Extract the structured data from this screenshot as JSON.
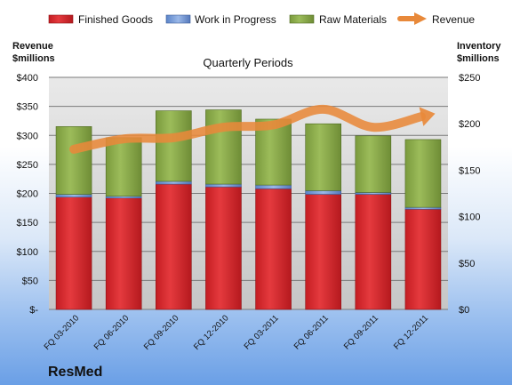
{
  "chart_data": {
    "type": "bar",
    "subtitle": "Quarterly Periods",
    "company": "ResMed",
    "left_axis": {
      "title_line1": "Revenue",
      "title_line2": "$millions",
      "range": [
        0,
        400
      ],
      "ticks": [
        0,
        50,
        100,
        150,
        200,
        250,
        300,
        350,
        400
      ],
      "tick_labels": [
        "$-",
        "$50",
        "$100",
        "$150",
        "$200",
        "$250",
        "$300",
        "$350",
        "$400"
      ]
    },
    "right_axis": {
      "title_line1": "Inventory",
      "title_line2": "$millions",
      "range": [
        0,
        250
      ],
      "ticks": [
        0,
        50,
        100,
        150,
        200,
        250
      ],
      "tick_labels": [
        "$0",
        "$50",
        "$100",
        "$150",
        "$200",
        "$250"
      ]
    },
    "categories": [
      "FQ 03-2010",
      "FQ 06-2010",
      "FQ 09-2010",
      "FQ 12-2010",
      "FQ 03-2011",
      "FQ 06-2011",
      "FQ 09-2011",
      "FQ 12-2011"
    ],
    "series": [
      {
        "name": "Finished Goods",
        "axis": "right",
        "color": "#d9252a",
        "values": [
          121,
          120,
          135,
          132,
          130,
          124,
          124,
          108
        ]
      },
      {
        "name": "Work in Progress",
        "axis": "right",
        "color": "#6f97d8",
        "values": [
          3,
          2,
          3,
          3,
          4,
          4,
          2,
          2
        ]
      },
      {
        "name": "Raw Materials",
        "axis": "right",
        "color": "#8aab4a",
        "values": [
          73,
          63,
          76,
          80,
          71,
          72,
          61,
          73
        ]
      },
      {
        "name": "Revenue",
        "axis": "left",
        "color": "#e8893a",
        "type": "line",
        "values": [
          276,
          294,
          296,
          314,
          318,
          345,
          314,
          333
        ]
      }
    ],
    "grid": true,
    "legend_position": "top"
  }
}
